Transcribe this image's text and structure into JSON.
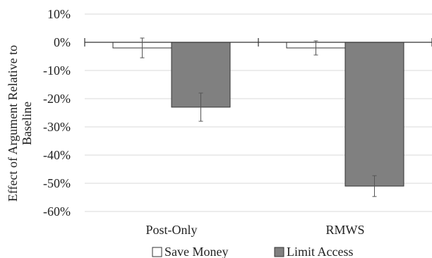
{
  "chart_data": {
    "type": "bar",
    "categories": [
      "Post-Only",
      "RMWS"
    ],
    "series": [
      {
        "name": "Save Money",
        "values": [
          -2,
          -2
        ],
        "error": [
          3.5,
          2.5
        ],
        "color": "#ffffff"
      },
      {
        "name": "Limit Access",
        "values": [
          -23,
          -51
        ],
        "error": [
          5,
          3.7
        ],
        "color": "#808080"
      }
    ],
    "ylabel_line1": "Effect of Argument Relative to",
    "ylabel_line2": "Baseline",
    "ylim": [
      -60,
      10
    ],
    "yticks": [
      10,
      0,
      -10,
      -20,
      -30,
      -40,
      -50,
      -60
    ],
    "ytick_suffix": "%",
    "grid": true,
    "legend_position": "bottom"
  }
}
